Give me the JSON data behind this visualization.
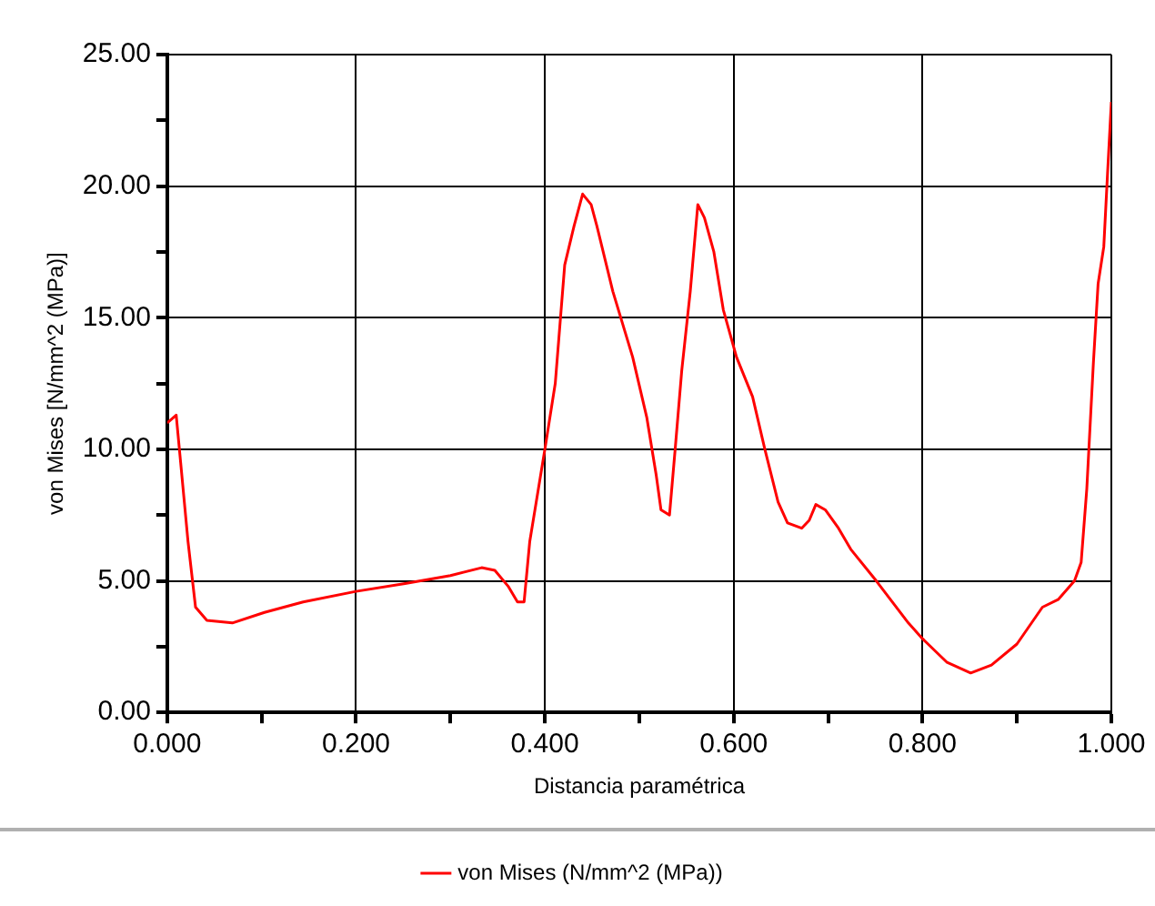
{
  "chart_data": {
    "type": "line",
    "xlabel": "Distancia paramétrica",
    "ylabel": "von Mises [N/mm^2 (MPa)]",
    "legend": "bottom",
    "grid": true,
    "marker": "none",
    "line_style": "solid",
    "xlim": [
      0,
      1
    ],
    "ylim": [
      0,
      25
    ],
    "xticks": [
      {
        "value": 0,
        "label": "0.000"
      },
      {
        "value": 0.1,
        "label": null
      },
      {
        "value": 0.2,
        "label": "0.200"
      },
      {
        "value": 0.3,
        "label": null
      },
      {
        "value": 0.4,
        "label": "0.400"
      },
      {
        "value": 0.5,
        "label": null
      },
      {
        "value": 0.6,
        "label": "0.600"
      },
      {
        "value": 0.7,
        "label": null
      },
      {
        "value": 0.8,
        "label": "0.800"
      },
      {
        "value": 0.9,
        "label": null
      },
      {
        "value": 1,
        "label": "1.000"
      }
    ],
    "yticks": [
      {
        "value": 0,
        "label": "0.00"
      },
      {
        "value": 2.5,
        "label": null
      },
      {
        "value": 5,
        "label": "5.00"
      },
      {
        "value": 7.5,
        "label": null
      },
      {
        "value": 10,
        "label": "10.00"
      },
      {
        "value": 12.5,
        "label": null
      },
      {
        "value": 15,
        "label": "15.00"
      },
      {
        "value": 17.5,
        "label": null
      },
      {
        "value": 20,
        "label": "20.00"
      },
      {
        "value": 22.5,
        "label": null
      },
      {
        "value": 25,
        "label": "25.00"
      }
    ],
    "series": [
      {
        "name": "von Mises (N/mm^2 (MPa))",
        "color": "#ff0000",
        "x": [
          0,
          0.0095,
          0.015,
          0.022,
          0.03,
          0.042,
          0.069,
          0.103,
          0.144,
          0.2,
          0.252,
          0.3,
          0.333,
          0.347,
          0.361,
          0.371,
          0.378,
          0.384,
          0.4,
          0.411,
          0.421,
          0.431,
          0.44,
          0.449,
          0.455,
          0.472,
          0.493,
          0.508,
          0.518,
          0.523,
          0.532,
          0.538,
          0.545,
          0.554,
          0.562,
          0.569,
          0.579,
          0.589,
          0.603,
          0.62,
          0.633,
          0.647,
          0.657,
          0.672,
          0.68,
          0.687,
          0.697,
          0.711,
          0.724,
          0.751,
          0.785,
          0.8,
          0.826,
          0.851,
          0.873,
          0.9,
          0.927,
          0.944,
          0.961,
          0.968,
          0.974,
          0.981,
          0.986,
          0.992,
          0.996,
          1
        ],
        "values": [
          11.0,
          11.3,
          9.2,
          6.5,
          4.0,
          3.5,
          3.4,
          3.8,
          4.2,
          4.6,
          4.9,
          5.2,
          5.5,
          5.4,
          4.8,
          4.2,
          4.2,
          6.5,
          10.0,
          12.5,
          17.0,
          18.5,
          19.7,
          19.3,
          18.5,
          16.0,
          13.5,
          11.2,
          9.0,
          7.7,
          7.5,
          10.0,
          13.0,
          16.0,
          19.3,
          18.8,
          17.5,
          15.3,
          13.5,
          12.0,
          10.0,
          8.0,
          7.2,
          7.0,
          7.3,
          7.9,
          7.7,
          7.0,
          6.2,
          5.0,
          3.4,
          2.8,
          1.9,
          1.5,
          1.8,
          2.6,
          4.0,
          4.3,
          5.0,
          5.7,
          8.5,
          13.3,
          16.3,
          17.7,
          20.5,
          23.2
        ]
      }
    ]
  }
}
